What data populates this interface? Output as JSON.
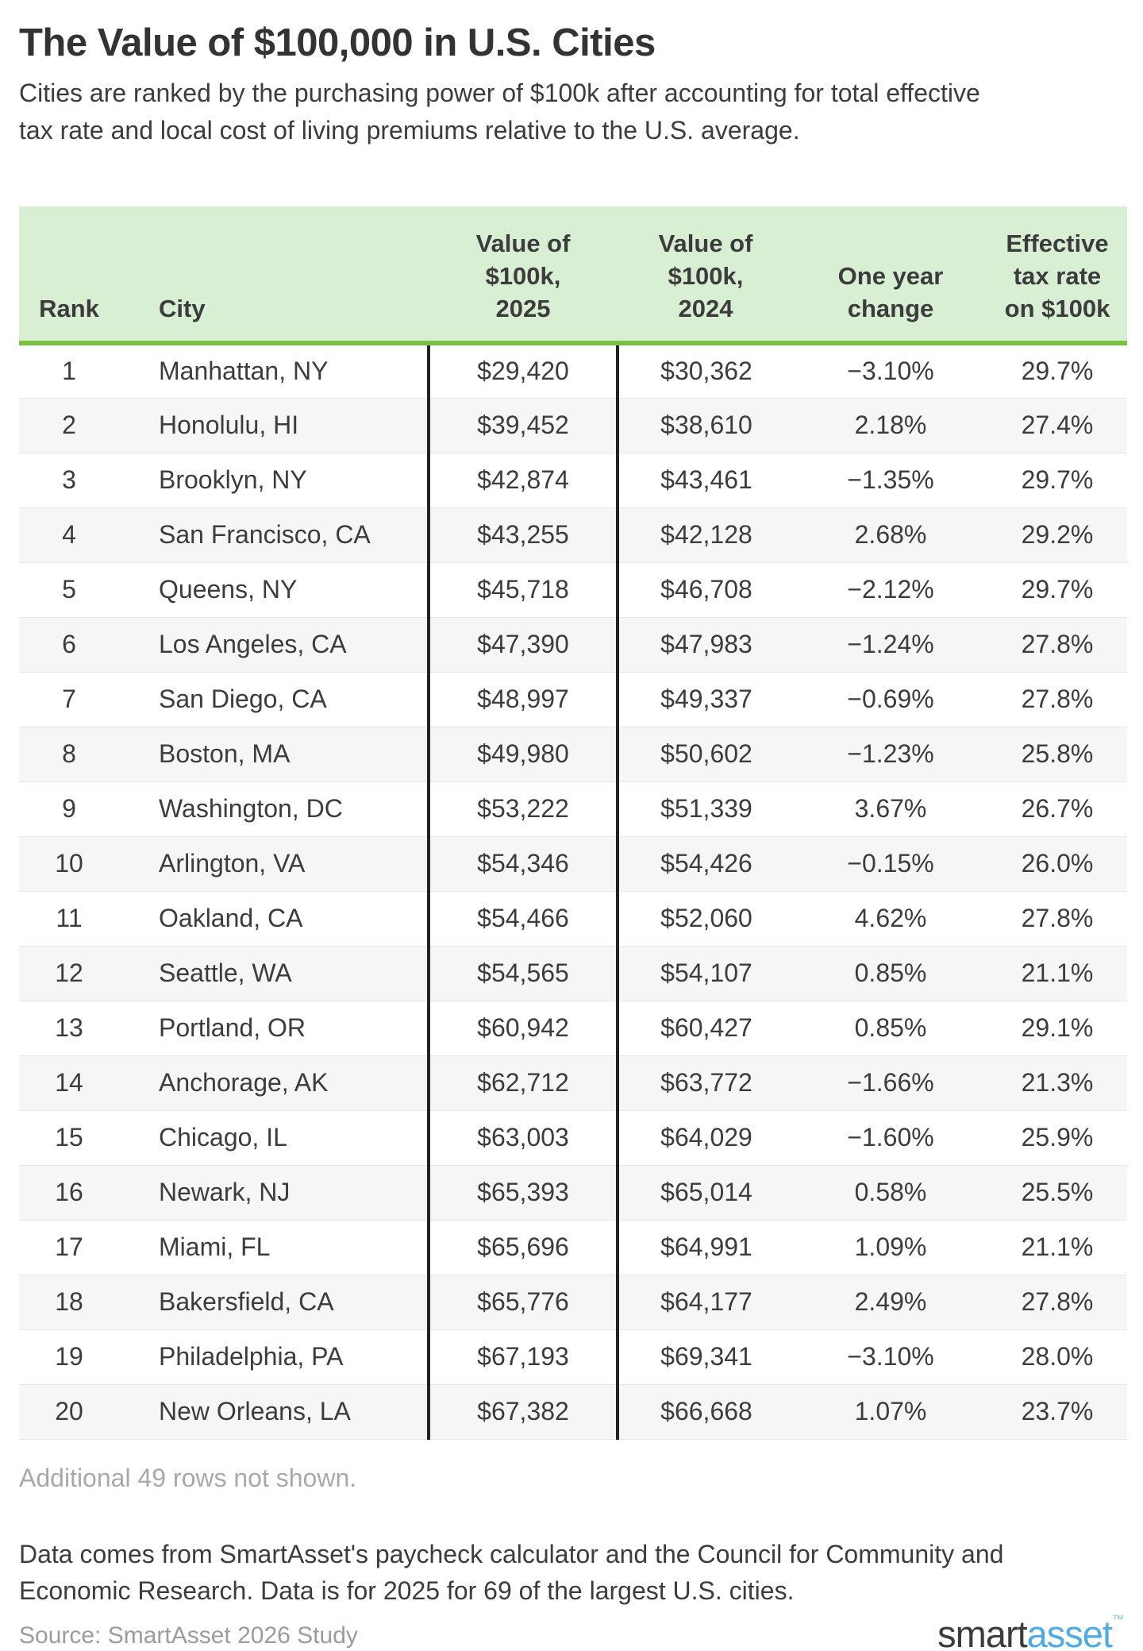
{
  "header": {
    "title": "The Value of $100,000 in U.S. Cities",
    "subtitle": "Cities are ranked by the purchasing power of $100k after accounting for total effective\ntax rate and local cost of living premiums relative to the U.S. average."
  },
  "chart_data": {
    "type": "table",
    "title": "The Value of $100,000 in U.S. Cities",
    "columns": [
      {
        "label": "Rank",
        "align": "center"
      },
      {
        "label": "City",
        "align": "left"
      },
      {
        "label": "Value of\n$100k,\n2025",
        "align": "center"
      },
      {
        "label": "Value of\n$100k,\n2024",
        "align": "center"
      },
      {
        "label": "One year\nchange",
        "align": "center"
      },
      {
        "label": "Effective\ntax rate\non $100k",
        "align": "center"
      }
    ],
    "rows": [
      {
        "rank": "1",
        "city": "Manhattan, NY",
        "value_2025": "$29,420",
        "value_2024": "$30,362",
        "one_year_change": "−3.10%",
        "effective_tax_rate": "29.7%"
      },
      {
        "rank": "2",
        "city": "Honolulu, HI",
        "value_2025": "$39,452",
        "value_2024": "$38,610",
        "one_year_change": "2.18%",
        "effective_tax_rate": "27.4%"
      },
      {
        "rank": "3",
        "city": "Brooklyn, NY",
        "value_2025": "$42,874",
        "value_2024": "$43,461",
        "one_year_change": "−1.35%",
        "effective_tax_rate": "29.7%"
      },
      {
        "rank": "4",
        "city": "San Francisco, CA",
        "value_2025": "$43,255",
        "value_2024": "$42,128",
        "one_year_change": "2.68%",
        "effective_tax_rate": "29.2%"
      },
      {
        "rank": "5",
        "city": "Queens, NY",
        "value_2025": "$45,718",
        "value_2024": "$46,708",
        "one_year_change": "−2.12%",
        "effective_tax_rate": "29.7%"
      },
      {
        "rank": "6",
        "city": "Los Angeles, CA",
        "value_2025": "$47,390",
        "value_2024": "$47,983",
        "one_year_change": "−1.24%",
        "effective_tax_rate": "27.8%"
      },
      {
        "rank": "7",
        "city": "San Diego, CA",
        "value_2025": "$48,997",
        "value_2024": "$49,337",
        "one_year_change": "−0.69%",
        "effective_tax_rate": "27.8%"
      },
      {
        "rank": "8",
        "city": "Boston, MA",
        "value_2025": "$49,980",
        "value_2024": "$50,602",
        "one_year_change": "−1.23%",
        "effective_tax_rate": "25.8%"
      },
      {
        "rank": "9",
        "city": "Washington, DC",
        "value_2025": "$53,222",
        "value_2024": "$51,339",
        "one_year_change": "3.67%",
        "effective_tax_rate": "26.7%"
      },
      {
        "rank": "10",
        "city": "Arlington, VA",
        "value_2025": "$54,346",
        "value_2024": "$54,426",
        "one_year_change": "−0.15%",
        "effective_tax_rate": "26.0%"
      },
      {
        "rank": "11",
        "city": "Oakland, CA",
        "value_2025": "$54,466",
        "value_2024": "$52,060",
        "one_year_change": "4.62%",
        "effective_tax_rate": "27.8%"
      },
      {
        "rank": "12",
        "city": "Seattle, WA",
        "value_2025": "$54,565",
        "value_2024": "$54,107",
        "one_year_change": "0.85%",
        "effective_tax_rate": "21.1%"
      },
      {
        "rank": "13",
        "city": "Portland, OR",
        "value_2025": "$60,942",
        "value_2024": "$60,427",
        "one_year_change": "0.85%",
        "effective_tax_rate": "29.1%"
      },
      {
        "rank": "14",
        "city": "Anchorage, AK",
        "value_2025": "$62,712",
        "value_2024": "$63,772",
        "one_year_change": "−1.66%",
        "effective_tax_rate": "21.3%"
      },
      {
        "rank": "15",
        "city": "Chicago, IL",
        "value_2025": "$63,003",
        "value_2024": "$64,029",
        "one_year_change": "−1.60%",
        "effective_tax_rate": "25.9%"
      },
      {
        "rank": "16",
        "city": "Newark, NJ",
        "value_2025": "$65,393",
        "value_2024": "$65,014",
        "one_year_change": "0.58%",
        "effective_tax_rate": "25.5%"
      },
      {
        "rank": "17",
        "city": "Miami, FL",
        "value_2025": "$65,696",
        "value_2024": "$64,991",
        "one_year_change": "1.09%",
        "effective_tax_rate": "21.1%"
      },
      {
        "rank": "18",
        "city": "Bakersfield, CA",
        "value_2025": "$65,776",
        "value_2024": "$64,177",
        "one_year_change": "2.49%",
        "effective_tax_rate": "27.8%"
      },
      {
        "rank": "19",
        "city": "Philadelphia, PA",
        "value_2025": "$67,193",
        "value_2024": "$69,341",
        "one_year_change": "−3.10%",
        "effective_tax_rate": "28.0%"
      },
      {
        "rank": "20",
        "city": "New Orleans, LA",
        "value_2025": "$67,382",
        "value_2024": "$66,668",
        "one_year_change": "1.07%",
        "effective_tax_rate": "23.7%"
      }
    ],
    "layout_hints": {
      "header_bg": "#d9efd3",
      "header_rule": "#7ac143",
      "stripe_bg": "#f6f6f6",
      "column_rules": "#222222"
    }
  },
  "notes": {
    "additional": "Additional 49 rows not shown.",
    "description": "Data comes from SmartAsset's paycheck calculator and the Council for Community and\nEconomic Research. Data is for 2025 for 69 of the largest U.S. cities.",
    "source": "Source: SmartAsset 2026 Study"
  },
  "logo": {
    "part1": "smart",
    "part2": "asset",
    "tm": "™"
  },
  "colors": {
    "accent_green": "#7ac143",
    "header_green_bg": "#d9efd3",
    "logo_blue": "#4fabe1",
    "text_dark": "#3c3c3c",
    "muted_gray": "#a9a9a9"
  }
}
